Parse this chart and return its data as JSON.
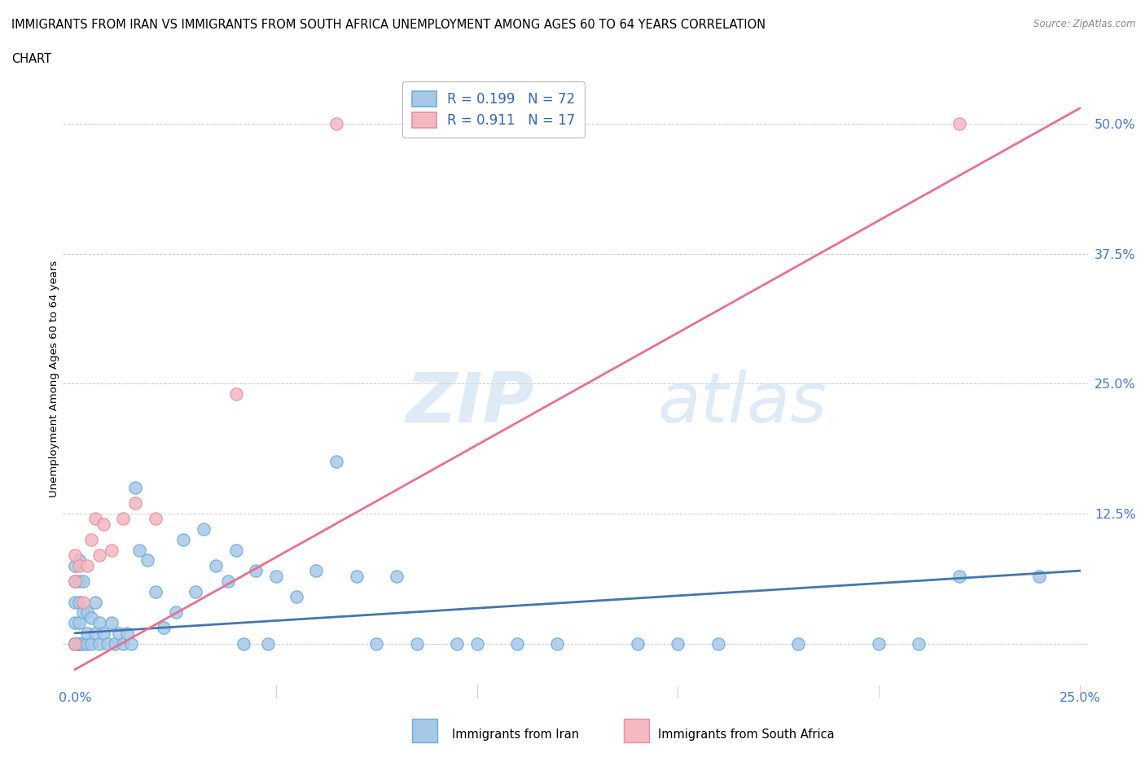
{
  "title_line1": "IMMIGRANTS FROM IRAN VS IMMIGRANTS FROM SOUTH AFRICA UNEMPLOYMENT AMONG AGES 60 TO 64 YEARS CORRELATION",
  "title_line2": "CHART",
  "source_text": "Source: ZipAtlas.com",
  "ylabel": "Unemployment Among Ages 60 to 64 years",
  "xlim": [
    0.0,
    0.25
  ],
  "ylim": [
    -0.04,
    0.55
  ],
  "yticks": [
    0.0,
    0.125,
    0.25,
    0.375,
    0.5
  ],
  "ytick_labels": [
    "",
    "12.5%",
    "25.0%",
    "37.5%",
    "50.0%"
  ],
  "xticks": [
    0.0,
    0.05,
    0.1,
    0.15,
    0.2,
    0.25
  ],
  "xtick_labels": [
    "0.0%",
    "",
    "",
    "",
    "",
    "25.0%"
  ],
  "legend_r1": "R = 0.199",
  "legend_n1": "N = 72",
  "legend_r2": "R = 0.911",
  "legend_n2": "N = 17",
  "color_iran": "#a8c8e8",
  "color_sa": "#f4b8c1",
  "color_iran_edge": "#6baed6",
  "color_sa_edge": "#e78fa0",
  "trendline_iran_color": "#4477aa",
  "trendline_sa_color": "#e87090",
  "watermark_color": "#c8dff0",
  "iran_x": [
    0.0,
    0.0,
    0.0,
    0.0,
    0.0,
    0.0,
    0.0,
    0.0,
    0.0,
    0.0,
    0.001,
    0.001,
    0.001,
    0.001,
    0.001,
    0.001,
    0.001,
    0.002,
    0.002,
    0.002,
    0.003,
    0.003,
    0.003,
    0.004,
    0.004,
    0.005,
    0.005,
    0.006,
    0.006,
    0.007,
    0.008,
    0.009,
    0.01,
    0.011,
    0.012,
    0.013,
    0.014,
    0.015,
    0.016,
    0.018,
    0.02,
    0.022,
    0.025,
    0.027,
    0.03,
    0.032,
    0.035,
    0.038,
    0.04,
    0.042,
    0.045,
    0.048,
    0.05,
    0.055,
    0.06,
    0.065,
    0.07,
    0.075,
    0.08,
    0.085,
    0.095,
    0.1,
    0.11,
    0.12,
    0.14,
    0.15,
    0.16,
    0.18,
    0.2,
    0.21,
    0.22,
    0.24
  ],
  "iran_y": [
    0.0,
    0.0,
    0.0,
    0.0,
    0.0,
    0.02,
    0.04,
    0.06,
    0.075,
    0.0,
    0.0,
    0.0,
    0.0,
    0.02,
    0.04,
    0.06,
    0.08,
    0.0,
    0.03,
    0.06,
    0.0,
    0.01,
    0.03,
    0.0,
    0.025,
    0.01,
    0.04,
    0.0,
    0.02,
    0.01,
    0.0,
    0.02,
    0.0,
    0.01,
    0.0,
    0.01,
    0.0,
    0.15,
    0.09,
    0.08,
    0.05,
    0.015,
    0.03,
    0.1,
    0.05,
    0.11,
    0.075,
    0.06,
    0.09,
    0.0,
    0.07,
    0.0,
    0.065,
    0.045,
    0.07,
    0.175,
    0.065,
    0.0,
    0.065,
    0.0,
    0.0,
    0.0,
    0.0,
    0.0,
    0.0,
    0.0,
    0.0,
    0.0,
    0.0,
    0.0,
    0.065,
    0.065
  ],
  "sa_x": [
    0.0,
    0.0,
    0.0,
    0.001,
    0.002,
    0.003,
    0.004,
    0.005,
    0.006,
    0.007,
    0.009,
    0.012,
    0.015,
    0.02,
    0.04,
    0.065,
    0.22
  ],
  "sa_y": [
    0.0,
    0.06,
    0.085,
    0.075,
    0.04,
    0.075,
    0.1,
    0.12,
    0.085,
    0.115,
    0.09,
    0.12,
    0.135,
    0.12,
    0.24,
    0.5,
    0.5
  ],
  "iran_trend_x0": 0.0,
  "iran_trend_y0": 0.01,
  "iran_trend_x1": 0.25,
  "iran_trend_y1": 0.07,
  "sa_trend_x0": 0.0,
  "sa_trend_y0": -0.025,
  "sa_trend_x1": 0.25,
  "sa_trend_y1": 0.515
}
